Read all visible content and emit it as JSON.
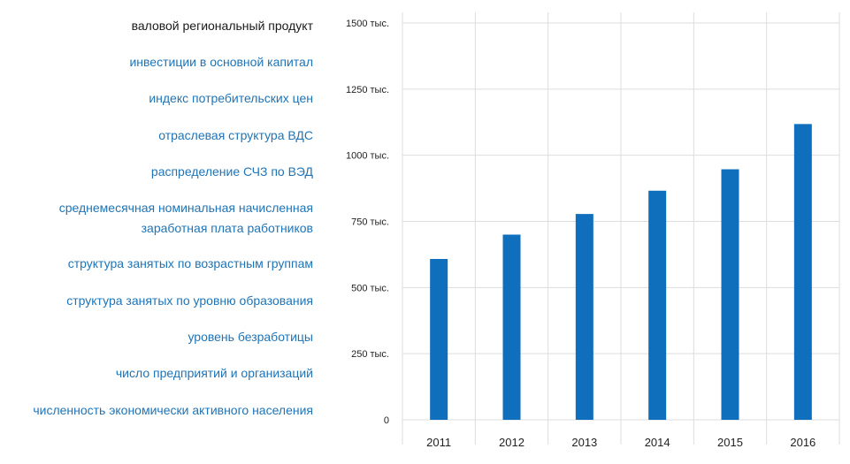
{
  "menu": {
    "items": [
      {
        "lines": [
          "валовой региональный продукт"
        ],
        "active": true
      },
      {
        "lines": [
          "инвестиции в основной капитал"
        ],
        "active": false
      },
      {
        "lines": [
          "индекс потребительских цен"
        ],
        "active": false
      },
      {
        "lines": [
          "отраслевая структура ВДС"
        ],
        "active": false
      },
      {
        "lines": [
          "распределение СЧЗ по ВЭД"
        ],
        "active": false
      },
      {
        "lines": [
          "среднемесячная номинальная начисленная",
          "заработная плата работников"
        ],
        "active": false
      },
      {
        "lines": [
          "структура занятых по возрастным группам"
        ],
        "active": false
      },
      {
        "lines": [
          "структура занятых по уровню образования"
        ],
        "active": false
      },
      {
        "lines": [
          "уровень безработицы"
        ],
        "active": false
      },
      {
        "lines": [
          "число предприятий и организаций"
        ],
        "active": false
      },
      {
        "lines": [
          "численность экономически активного населения"
        ],
        "active": false
      }
    ]
  },
  "colors": {
    "accent": "#1f74b6",
    "bar": "#0f6fbd",
    "grid": "#dddddd",
    "text": "#1a1a1a"
  },
  "chart_data": {
    "type": "bar",
    "categories": [
      "2011",
      "2012",
      "2013",
      "2014",
      "2015",
      "2016"
    ],
    "values": [
      608000,
      700000,
      778000,
      866000,
      947000,
      1118000
    ],
    "ylim": [
      0,
      1500000
    ],
    "yticks": [
      0,
      250000,
      500000,
      750000,
      1000000,
      1250000,
      1500000
    ],
    "ytick_labels": [
      "0",
      "250 тыс.",
      "500 тыс.",
      "750 тыс.",
      "1000 тыс.",
      "1250 тыс.",
      "1500 тыс."
    ],
    "grid": true
  }
}
